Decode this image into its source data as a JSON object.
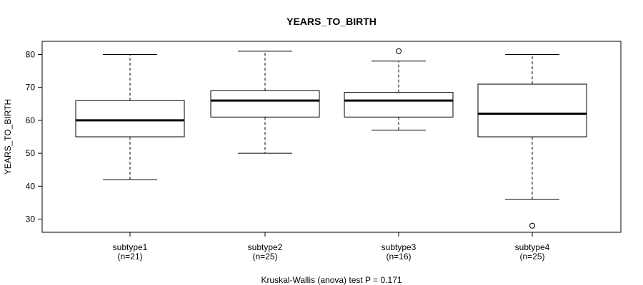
{
  "chart_data": {
    "type": "boxplot",
    "title": "YEARS_TO_BIRTH",
    "ylabel": "YEARS_TO_BIRTH",
    "xlabel": "Kruskal-Wallis (anova) test P = 0.171",
    "ylim": [
      26,
      84
    ],
    "yticks": [
      30,
      40,
      50,
      60,
      70,
      80
    ],
    "groups": [
      {
        "label": "subtype1",
        "n_label": "(n=21)",
        "whisker_low": 42,
        "q1": 55,
        "median": 60,
        "q3": 66,
        "whisker_high": 80,
        "outliers": []
      },
      {
        "label": "subtype2",
        "n_label": "(n=25)",
        "whisker_low": 50,
        "q1": 61,
        "median": 66,
        "q3": 69,
        "whisker_high": 81,
        "outliers": []
      },
      {
        "label": "subtype3",
        "n_label": "(n=16)",
        "whisker_low": 57,
        "q1": 61,
        "median": 66,
        "q3": 68.5,
        "whisker_high": 78,
        "outliers": [
          81
        ]
      },
      {
        "label": "subtype4",
        "n_label": "(n=25)",
        "whisker_low": 36,
        "q1": 55,
        "median": 62,
        "q3": 71,
        "whisker_high": 80,
        "outliers": [
          28
        ]
      }
    ]
  }
}
